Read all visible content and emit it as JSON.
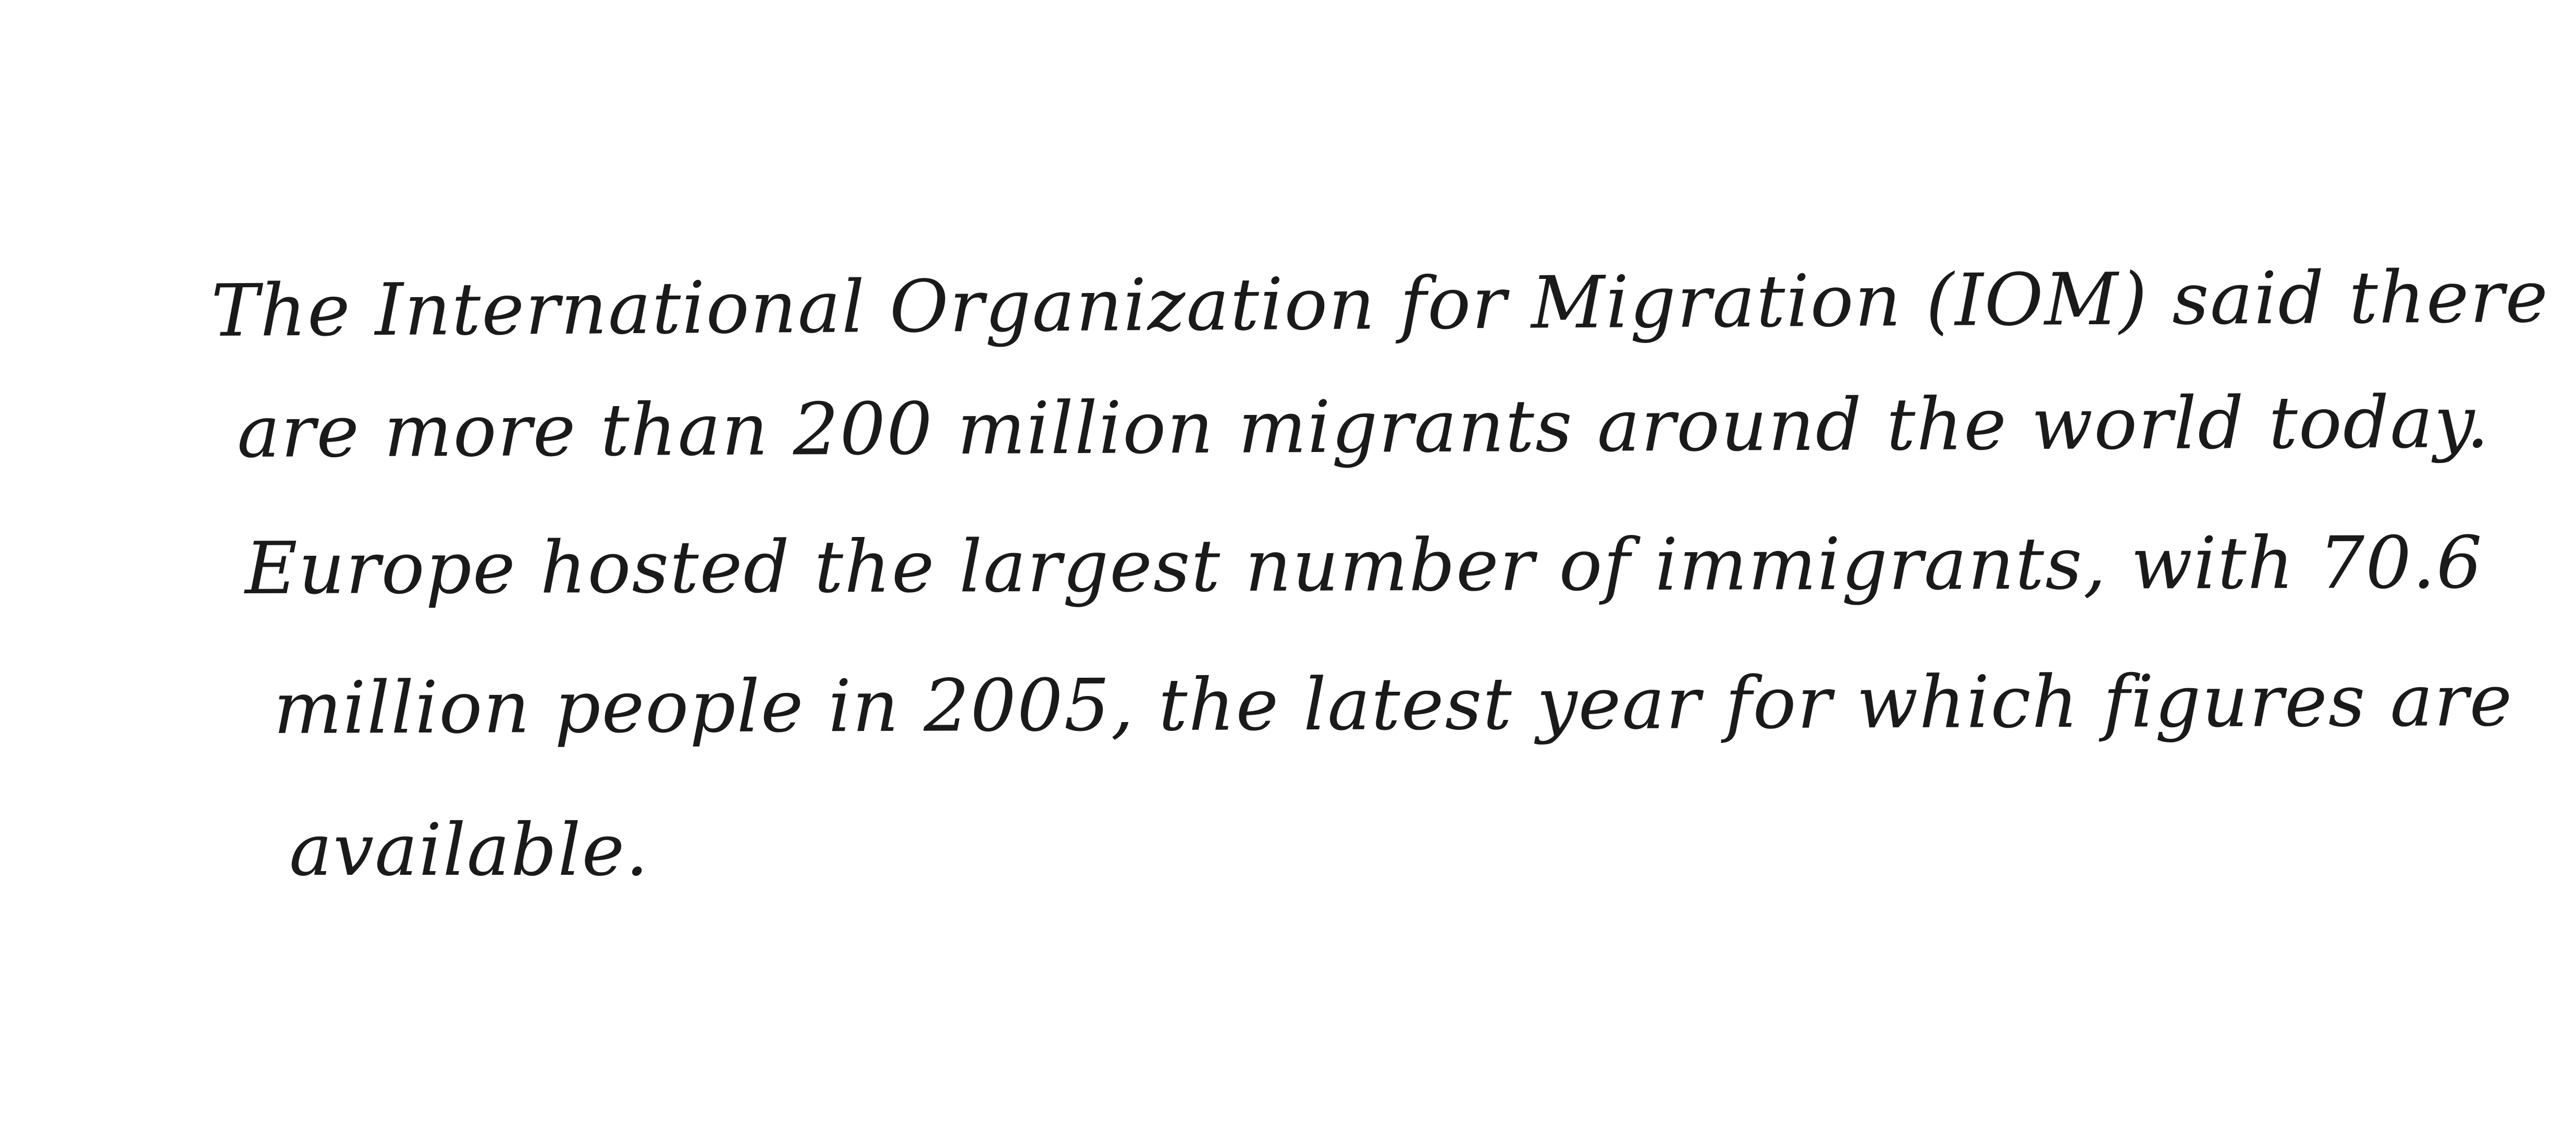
{
  "document": {
    "lines": [
      "The International Organization for Migration (IOM) said there",
      "are more than 200 million migrants around the world today.",
      "Europe hosted the largest number of immigrants, with 70.6",
      "million people in 2005, the latest year for which figures are",
      "available."
    ]
  }
}
